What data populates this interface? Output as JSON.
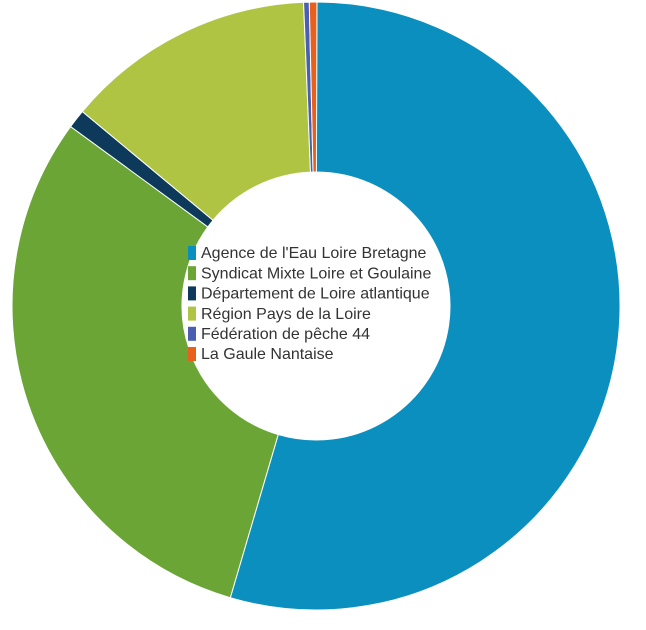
{
  "chart_data": {
    "type": "donut",
    "categories": [
      "Agence de l'Eau Loire Bretagne",
      "Syndicat Mixte Loire et Goulaine",
      "Département de Loire atlantique",
      "Région Pays de la Loire",
      "Fédération de pêche 44",
      "La Gaule Nantaise"
    ],
    "values": [
      54.5,
      30.5,
      1.0,
      13.3,
      0.3,
      0.4
    ],
    "colors": [
      "#0b8fbf",
      "#6aa535",
      "#0d3a5a",
      "#b0c444",
      "#4a5fb0",
      "#e8601c"
    ],
    "legend": "center"
  }
}
